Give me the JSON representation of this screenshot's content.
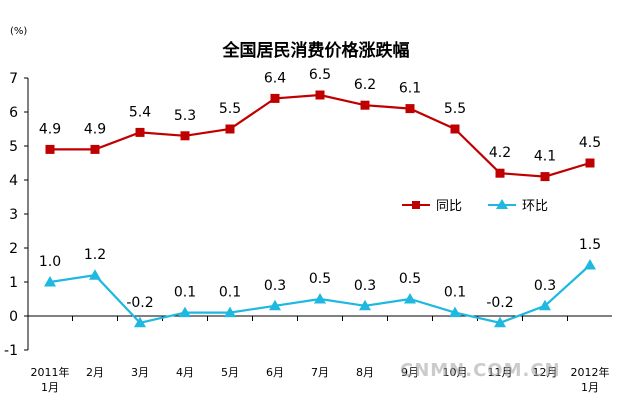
{
  "chart_data": {
    "type": "line",
    "title": "全国居民消费价格涨跌幅",
    "unit_label": "(%)",
    "ylim": [
      -1,
      7
    ],
    "y_ticks": [
      "-1",
      "0",
      "1",
      "2",
      "3",
      "4",
      "5",
      "6",
      "7"
    ],
    "categories": [
      {
        "line1": "2011年",
        "line2": "1月"
      },
      {
        "line1": "2月",
        "line2": ""
      },
      {
        "line1": "3月",
        "line2": ""
      },
      {
        "line1": "4月",
        "line2": ""
      },
      {
        "line1": "5月",
        "line2": ""
      },
      {
        "line1": "6月",
        "line2": ""
      },
      {
        "line1": "7月",
        "line2": ""
      },
      {
        "line1": "8月",
        "line2": ""
      },
      {
        "line1": "9月",
        "line2": ""
      },
      {
        "line1": "10月",
        "line2": ""
      },
      {
        "line1": "11月",
        "line2": ""
      },
      {
        "line1": "12月",
        "line2": ""
      },
      {
        "line1": "2012年",
        "line2": "1月"
      }
    ],
    "series": [
      {
        "name": "同比",
        "color": "#C00000",
        "marker": "square",
        "values": [
          4.9,
          4.9,
          5.4,
          5.3,
          5.5,
          6.4,
          6.5,
          6.2,
          6.1,
          5.5,
          4.2,
          4.1,
          4.5
        ],
        "labels": [
          "4.9",
          "4.9",
          "5.4",
          "5.3",
          "5.5",
          "6.4",
          "6.5",
          "6.2",
          "6.1",
          "5.5",
          "4.2",
          "4.1",
          "4.5"
        ]
      },
      {
        "name": "环比",
        "color": "#1EB8E0",
        "marker": "triangle",
        "values": [
          1.0,
          1.2,
          -0.2,
          0.1,
          0.1,
          0.3,
          0.5,
          0.3,
          0.5,
          0.1,
          -0.2,
          0.3,
          1.5
        ],
        "labels": [
          "1.0",
          "1.2",
          "-0.2",
          "0.1",
          "0.1",
          "0.3",
          "0.5",
          "0.3",
          "0.5",
          "0.1",
          "-0.2",
          "0.3",
          "1.5"
        ]
      }
    ],
    "legend_position": "center-right",
    "grid": false
  },
  "watermark": "CNMN.COM.CN"
}
